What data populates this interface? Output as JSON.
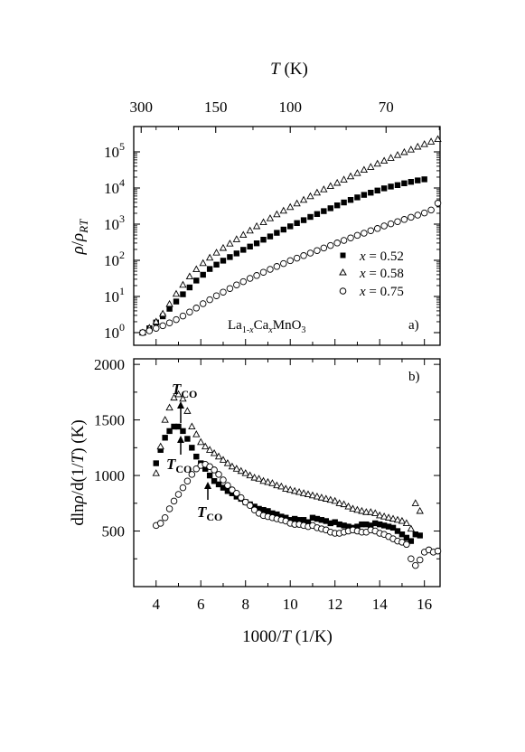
{
  "chart_data": [
    {
      "panel": "a",
      "type": "scatter",
      "panel_label": "a)",
      "formula": "La1-xCaxMnO3",
      "ylabel": "ρ/ρRT",
      "ylog": true,
      "xlim": [
        3,
        16.7
      ],
      "ylim_log10": [
        -0.35,
        5.7
      ],
      "y_ticks": [
        "10^0",
        "10^1",
        "10^2",
        "10^3",
        "10^4",
        "10^5"
      ],
      "top_axis": {
        "label": "T (K)",
        "ticks": [
          300,
          150,
          100,
          70
        ]
      },
      "legend_position": "lower-right",
      "series": [
        {
          "name": "x = 0.52",
          "marker": "filled-square",
          "x": [
            3.4,
            3.7,
            4.0,
            4.3,
            4.6,
            4.9,
            5.2,
            5.5,
            5.8,
            6.1,
            6.4,
            6.7,
            7.0,
            7.3,
            7.6,
            7.9,
            8.2,
            8.5,
            8.8,
            9.1,
            9.4,
            9.7,
            10.0,
            10.3,
            10.6,
            10.9,
            11.2,
            11.5,
            11.8,
            12.1,
            12.4,
            12.7,
            13.0,
            13.3,
            13.6,
            13.9,
            14.2,
            14.5,
            14.8,
            15.1,
            15.4,
            15.7,
            16.0
          ],
          "log10y": [
            0,
            0.12,
            0.28,
            0.45,
            0.66,
            0.86,
            1.06,
            1.25,
            1.44,
            1.6,
            1.76,
            1.88,
            1.99,
            2.09,
            2.19,
            2.29,
            2.38,
            2.47,
            2.57,
            2.66,
            2.76,
            2.85,
            2.94,
            3.03,
            3.11,
            3.2,
            3.28,
            3.36,
            3.44,
            3.52,
            3.6,
            3.67,
            3.74,
            3.81,
            3.87,
            3.93,
            3.99,
            4.04,
            4.08,
            4.13,
            4.17,
            4.21,
            4.24
          ]
        },
        {
          "name": "x = 0.58",
          "marker": "open-triangle",
          "x": [
            3.4,
            3.7,
            4.0,
            4.3,
            4.6,
            4.9,
            5.2,
            5.5,
            5.8,
            6.1,
            6.4,
            6.7,
            7.0,
            7.3,
            7.6,
            7.9,
            8.2,
            8.5,
            8.8,
            9.1,
            9.4,
            9.7,
            10.0,
            10.3,
            10.6,
            10.9,
            11.2,
            11.5,
            11.8,
            12.1,
            12.4,
            12.7,
            13.0,
            13.3,
            13.6,
            13.9,
            14.2,
            14.5,
            14.8,
            15.1,
            15.4,
            15.7,
            16.0,
            16.3,
            16.6
          ],
          "log10y": [
            0,
            0.13,
            0.3,
            0.52,
            0.79,
            1.07,
            1.32,
            1.55,
            1.75,
            1.92,
            2.07,
            2.21,
            2.34,
            2.46,
            2.58,
            2.7,
            2.82,
            2.94,
            3.05,
            3.16,
            3.27,
            3.37,
            3.47,
            3.57,
            3.67,
            3.77,
            3.87,
            3.96,
            4.05,
            4.14,
            4.23,
            4.32,
            4.41,
            4.5,
            4.58,
            4.67,
            4.75,
            4.83,
            4.91,
            4.99,
            5.06,
            5.14,
            5.21,
            5.28,
            5.35
          ]
        },
        {
          "name": "x = 0.75",
          "marker": "open-circle",
          "x": [
            3.4,
            3.7,
            4.0,
            4.3,
            4.6,
            4.9,
            5.2,
            5.5,
            5.8,
            6.1,
            6.4,
            6.7,
            7.0,
            7.3,
            7.6,
            7.9,
            8.2,
            8.5,
            8.8,
            9.1,
            9.4,
            9.7,
            10.0,
            10.3,
            10.6,
            10.9,
            11.2,
            11.5,
            11.8,
            12.1,
            12.4,
            12.7,
            13.0,
            13.3,
            13.6,
            13.9,
            14.2,
            14.5,
            14.8,
            15.1,
            15.4,
            15.7,
            16.0,
            16.3,
            16.6
          ],
          "log10y": [
            0,
            0.05,
            0.12,
            0.19,
            0.27,
            0.36,
            0.46,
            0.57,
            0.68,
            0.8,
            0.91,
            1.02,
            1.12,
            1.22,
            1.32,
            1.41,
            1.5,
            1.58,
            1.67,
            1.75,
            1.83,
            1.91,
            1.99,
            2.06,
            2.13,
            2.2,
            2.27,
            2.34,
            2.41,
            2.48,
            2.55,
            2.62,
            2.69,
            2.75,
            2.82,
            2.88,
            2.95,
            3.01,
            3.07,
            3.13,
            3.19,
            3.25,
            3.31,
            3.39,
            3.58
          ]
        }
      ]
    },
    {
      "panel": "b",
      "type": "scatter",
      "panel_label": "b)",
      "xlabel": "1000/T (1/K)",
      "ylabel": "dlnρ/d(1/T) (K)",
      "xlim": [
        3,
        16.7
      ],
      "ylim": [
        0,
        2050
      ],
      "x_ticks": [
        4,
        6,
        8,
        10,
        12,
        14,
        16
      ],
      "y_ticks": [
        500,
        1000,
        1500,
        2000
      ],
      "annotations": [
        {
          "text": "T",
          "sub": "CO",
          "x": 5.1,
          "y": 1810
        },
        {
          "text": "T",
          "sub": "CO",
          "x": 4.8,
          "y": 1190
        },
        {
          "text": "T",
          "sub": "CO",
          "x": 6.4,
          "y": 730
        }
      ],
      "series": [
        {
          "name": "x = 0.52",
          "marker": "filled-square",
          "x": [
            4.0,
            4.2,
            4.4,
            4.6,
            4.8,
            5.0,
            5.2,
            5.4,
            5.6,
            5.8,
            6.0,
            6.2,
            6.4,
            6.6,
            6.8,
            7.0,
            7.2,
            7.4,
            7.6,
            7.8,
            8.0,
            8.2,
            8.4,
            8.6,
            8.8,
            9.0,
            9.2,
            9.4,
            9.6,
            9.8,
            10.0,
            10.2,
            10.4,
            10.6,
            10.8,
            11.0,
            11.2,
            11.4,
            11.6,
            11.8,
            12.0,
            12.2,
            12.4,
            12.6,
            12.8,
            13.0,
            13.2,
            13.4,
            13.6,
            13.8,
            14.0,
            14.2,
            14.4,
            14.6,
            14.8,
            15.0,
            15.2,
            15.4,
            15.6,
            15.8
          ],
          "y": [
            1110,
            1230,
            1340,
            1400,
            1440,
            1440,
            1400,
            1330,
            1250,
            1170,
            1110,
            1060,
            1000,
            950,
            920,
            890,
            860,
            840,
            810,
            790,
            760,
            740,
            720,
            700,
            690,
            680,
            660,
            650,
            630,
            620,
            600,
            610,
            600,
            600,
            580,
            620,
            610,
            600,
            590,
            570,
            580,
            560,
            550,
            540,
            530,
            540,
            560,
            560,
            550,
            570,
            560,
            550,
            540,
            530,
            500,
            470,
            440,
            410,
            470,
            460
          ]
        },
        {
          "name": "x = 0.58",
          "marker": "open-triangle",
          "x": [
            4.0,
            4.2,
            4.4,
            4.6,
            4.8,
            5.0,
            5.2,
            5.4,
            5.6,
            5.8,
            6.0,
            6.2,
            6.4,
            6.6,
            6.8,
            7.0,
            7.2,
            7.4,
            7.6,
            7.8,
            8.0,
            8.2,
            8.4,
            8.6,
            8.8,
            9.0,
            9.2,
            9.4,
            9.6,
            9.8,
            10.0,
            10.2,
            10.4,
            10.6,
            10.8,
            11.0,
            11.2,
            11.4,
            11.6,
            11.8,
            12.0,
            12.2,
            12.4,
            12.6,
            12.8,
            13.0,
            13.2,
            13.4,
            13.6,
            13.8,
            14.0,
            14.2,
            14.4,
            14.6,
            14.8,
            15.0,
            15.2,
            15.4,
            15.6,
            15.8
          ],
          "y": [
            1020,
            1260,
            1500,
            1610,
            1700,
            1730,
            1690,
            1580,
            1440,
            1370,
            1300,
            1260,
            1230,
            1200,
            1170,
            1140,
            1110,
            1080,
            1060,
            1040,
            1020,
            1000,
            980,
            970,
            950,
            940,
            930,
            910,
            900,
            880,
            870,
            860,
            850,
            840,
            830,
            820,
            810,
            800,
            790,
            780,
            770,
            750,
            740,
            720,
            700,
            690,
            680,
            670,
            670,
            660,
            640,
            630,
            620,
            610,
            600,
            590,
            570,
            520,
            750,
            680
          ]
        },
        {
          "name": "x = 0.75",
          "marker": "open-circle",
          "x": [
            4.0,
            4.2,
            4.4,
            4.6,
            4.8,
            5.0,
            5.2,
            5.4,
            5.6,
            5.8,
            6.0,
            6.2,
            6.4,
            6.6,
            6.8,
            7.0,
            7.2,
            7.4,
            7.6,
            7.8,
            8.0,
            8.2,
            8.4,
            8.6,
            8.8,
            9.0,
            9.2,
            9.4,
            9.6,
            9.8,
            10.0,
            10.2,
            10.4,
            10.6,
            10.8,
            11.0,
            11.2,
            11.4,
            11.6,
            11.8,
            12.0,
            12.2,
            12.4,
            12.6,
            12.8,
            13.0,
            13.2,
            13.4,
            13.6,
            13.8,
            14.0,
            14.2,
            14.4,
            14.6,
            14.8,
            15.0,
            15.2,
            15.4,
            15.6,
            15.8,
            16.0,
            16.2,
            16.4,
            16.6
          ],
          "y": [
            550,
            570,
            620,
            700,
            770,
            830,
            890,
            950,
            1010,
            1060,
            1090,
            1100,
            1080,
            1050,
            1010,
            960,
            910,
            870,
            840,
            800,
            760,
            730,
            690,
            660,
            640,
            630,
            620,
            610,
            600,
            590,
            570,
            560,
            560,
            550,
            540,
            550,
            530,
            520,
            510,
            490,
            480,
            480,
            490,
            500,
            510,
            500,
            490,
            490,
            510,
            500,
            480,
            470,
            450,
            430,
            410,
            400,
            380,
            250,
            190,
            240,
            310,
            330,
            310,
            320
          ]
        }
      ]
    }
  ]
}
